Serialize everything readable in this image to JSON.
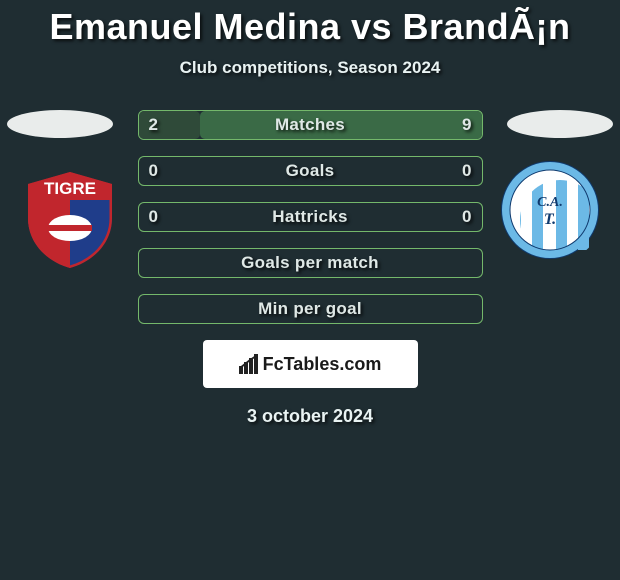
{
  "title": "Emanuel Medina vs BrandÃ¡n",
  "subtitle": "Club competitions, Season 2024",
  "date": "3 october 2024",
  "fctables_label": "FcTables.com",
  "colors": {
    "background": "#1f2d32",
    "row_border": "#74b86b",
    "fill_left": "#2f4a39",
    "fill_right": "#3a6a46",
    "text_light": "#dfe8e6"
  },
  "rows": [
    {
      "label": "Matches",
      "left": "2",
      "right": "9",
      "left_pct": 18,
      "right_pct": 82
    },
    {
      "label": "Goals",
      "left": "0",
      "right": "0",
      "left_pct": 0,
      "right_pct": 0
    },
    {
      "label": "Hattricks",
      "left": "0",
      "right": "0",
      "left_pct": 0,
      "right_pct": 0
    },
    {
      "label": "Goals per match",
      "left": "",
      "right": "",
      "left_pct": 0,
      "right_pct": 0
    },
    {
      "label": "Min per goal",
      "left": "",
      "right": "",
      "left_pct": 0,
      "right_pct": 0
    }
  ],
  "teams": {
    "left": {
      "name": "Tigre",
      "logo": "tigre"
    },
    "right": {
      "name": "Atlético Tucumán",
      "logo": "cat"
    }
  }
}
